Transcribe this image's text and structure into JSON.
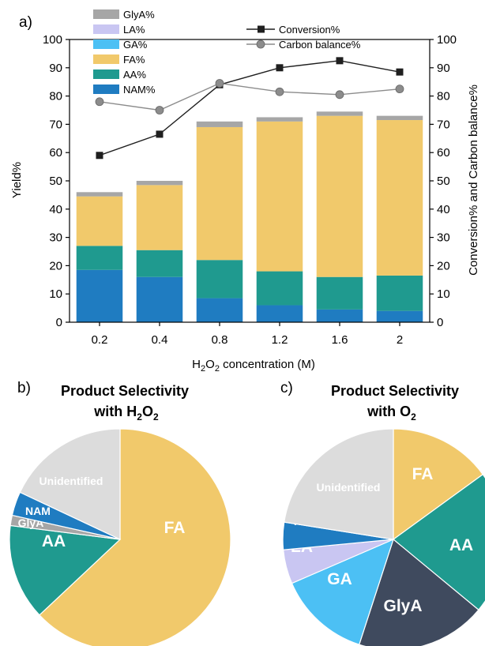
{
  "panels": {
    "a": "a)",
    "b": "b)",
    "c": "c)"
  },
  "colors": {
    "GlyA": "#a6a6a6",
    "LA": "#c9c6f2",
    "GA": "#4cc0f4",
    "FA": "#f1c96b",
    "AA": "#1f9a8f",
    "NAM": "#1f7cc1",
    "conversion": "#1f1f1f",
    "carbon": "#8c8c8c"
  },
  "chart_data": [
    {
      "type": "bar",
      "stacked": true,
      "categories": [
        "0.2",
        "0.4",
        "0.8",
        "1.2",
        "1.6",
        "2"
      ],
      "xlabel_prefix": "H",
      "xlabel_sub": "2",
      "xlabel_mid": "O",
      "xlabel_sub2": "2",
      "xlabel_suffix": " concentration (M)",
      "ylabel": "Yield%",
      "ylabel_right": "Conversion% and Carbon balance%",
      "ylim": [
        0,
        100
      ],
      "ylim_right": [
        0,
        100
      ],
      "yticks": [
        0,
        10,
        20,
        30,
        40,
        50,
        60,
        70,
        80,
        90,
        100
      ],
      "series": [
        {
          "name": "NAM%",
          "key": "NAM",
          "values": [
            18.5,
            16,
            8.5,
            6,
            4.5,
            4
          ]
        },
        {
          "name": "AA%",
          "key": "AA",
          "values": [
            8.5,
            9.5,
            13.5,
            12,
            11.5,
            12.5
          ]
        },
        {
          "name": "FA%",
          "key": "FA",
          "values": [
            17.5,
            23,
            47,
            53,
            57,
            55
          ]
        },
        {
          "name": "GA%",
          "key": "GA",
          "values": [
            0,
            0,
            0,
            0,
            0,
            0
          ]
        },
        {
          "name": "LA%",
          "key": "LA",
          "values": [
            0,
            0,
            0,
            0,
            0,
            0
          ]
        },
        {
          "name": "GlyA%",
          "key": "GlyA",
          "values": [
            1.5,
            1.5,
            2,
            1.5,
            1.5,
            1.5
          ]
        }
      ],
      "line_series": [
        {
          "name": "Conversion%",
          "key": "conversion",
          "marker": "square",
          "values": [
            59,
            66.5,
            84,
            90,
            92.5,
            88.5
          ]
        },
        {
          "name": "Carbon balance%",
          "key": "carbon",
          "marker": "circle",
          "values": [
            78,
            75,
            84.5,
            81.5,
            80.5,
            82.5
          ]
        }
      ]
    },
    {
      "type": "pie",
      "title_line1": "Product Selectivity",
      "title_line2_prefix": "with H",
      "title_sub": "2",
      "title_mid": "O",
      "title_sub2": "2",
      "slices": [
        {
          "label": "FA",
          "key": "FA",
          "value": 63
        },
        {
          "label": "AA",
          "key": "AA",
          "value": 14
        },
        {
          "label": "GlyA",
          "key": "GlyA",
          "value": 1.5
        },
        {
          "label": "NAM",
          "key": "NAM",
          "value": 3.5
        },
        {
          "label": "Unidentified",
          "key": "Unidentified",
          "value": 18
        }
      ]
    },
    {
      "type": "pie",
      "title_line1": "Product Selectivity",
      "title_line2_prefix": "with O",
      "title_sub": "2",
      "slices": [
        {
          "label": "FA",
          "key": "FA",
          "value": 15
        },
        {
          "label": "AA",
          "key": "AA",
          "value": 21
        },
        {
          "label": "GlyA",
          "key": "GlyA",
          "value": 19
        },
        {
          "label": "GA",
          "key": "GA",
          "value": 13.5
        },
        {
          "label": "LA",
          "key": "LA",
          "value": 5
        },
        {
          "label": "NAM",
          "key": "NAM",
          "value": 4
        },
        {
          "label": "Unidentified",
          "key": "Unidentified",
          "value": 22.5
        }
      ]
    }
  ],
  "unidentified_color": "#dcdcdc",
  "pie_c_colors": {
    "GlyA": "#3f4a5e"
  }
}
